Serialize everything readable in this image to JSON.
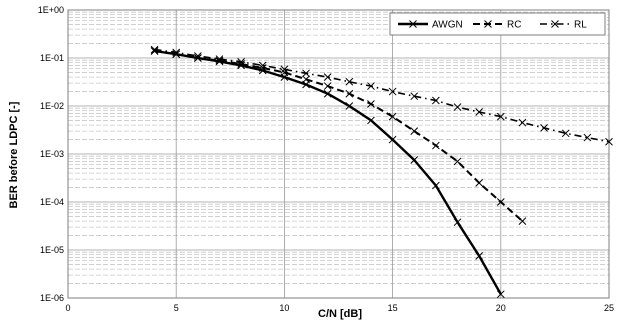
{
  "chart_data": {
    "type": "line",
    "title": "",
    "xlabel": "C/N [dB]",
    "ylabel": "BER before LDPC [-]",
    "xlim": [
      0,
      25
    ],
    "ylim": [
      1e-06,
      1
    ],
    "yscale": "log",
    "x_ticks": [
      0,
      5,
      10,
      15,
      20,
      25
    ],
    "x_tick_labels": [
      "0",
      "5",
      "10",
      "15",
      "20",
      "25"
    ],
    "y_ticks": [
      1,
      0.1,
      0.01,
      0.001,
      0.0001,
      1e-05,
      1e-06
    ],
    "y_tick_labels": [
      "1E+00",
      "1E-01",
      "1E-02",
      "1E-03",
      "1E-04",
      "1E-05",
      "1E-06"
    ],
    "grid": {
      "major": true,
      "minor": true,
      "style": "dashed"
    },
    "legend": {
      "position": "top-right"
    },
    "series": [
      {
        "name": "AWGN",
        "style": "solid",
        "color": "#000000",
        "marker": "x",
        "x": [
          4,
          5,
          6,
          7,
          8,
          9,
          10,
          11,
          12,
          13,
          14,
          15,
          16,
          17,
          18,
          19,
          20
        ],
        "y": [
          0.14,
          0.12,
          0.1,
          0.085,
          0.07,
          0.055,
          0.04,
          0.028,
          0.018,
          0.01,
          0.005,
          0.002,
          0.00075,
          0.00022,
          3.8e-05,
          7.5e-06,
          1.2e-06
        ]
      },
      {
        "name": "RC",
        "style": "dashed",
        "color": "#000000",
        "marker": "x",
        "x": [
          4,
          5,
          6,
          7,
          8,
          9,
          10,
          11,
          12,
          13,
          14,
          15,
          16,
          17,
          18,
          19,
          20,
          21
        ],
        "y": [
          0.14,
          0.12,
          0.1,
          0.088,
          0.075,
          0.062,
          0.05,
          0.036,
          0.026,
          0.018,
          0.011,
          0.006,
          0.003,
          0.0015,
          0.0007,
          0.00025,
          0.0001,
          4e-05
        ]
      },
      {
        "name": "RL",
        "style": "dash-dot",
        "color": "#000000",
        "marker": "x",
        "x": [
          4,
          5,
          6,
          7,
          8,
          9,
          10,
          11,
          12,
          13,
          14,
          15,
          16,
          17,
          18,
          19,
          20,
          21,
          22,
          23,
          24,
          25
        ],
        "y": [
          0.15,
          0.13,
          0.11,
          0.095,
          0.083,
          0.07,
          0.058,
          0.048,
          0.04,
          0.032,
          0.026,
          0.02,
          0.016,
          0.013,
          0.0095,
          0.0075,
          0.006,
          0.0045,
          0.0035,
          0.0027,
          0.0022,
          0.0018
        ]
      }
    ]
  }
}
